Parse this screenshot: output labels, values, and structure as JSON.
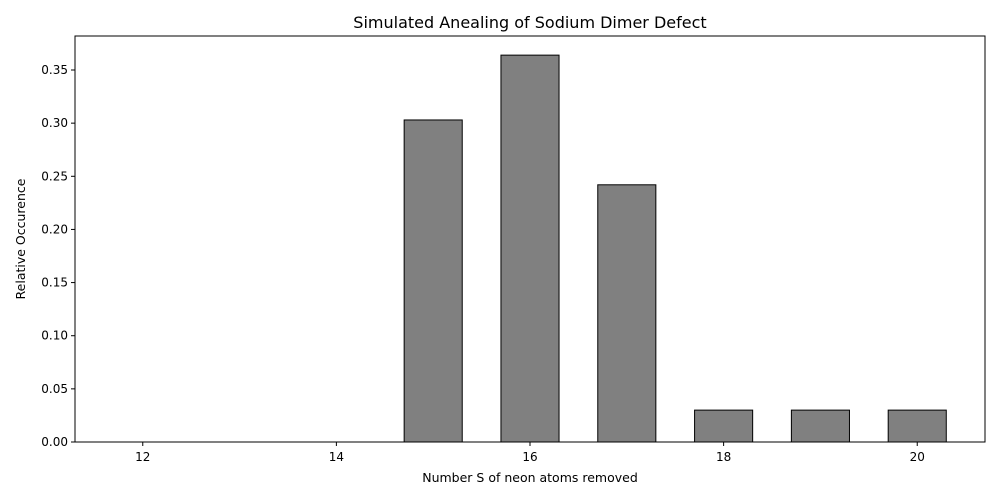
{
  "chart_data": {
    "type": "bar",
    "title": "Simulated Anealing of Sodium Dimer Defect",
    "xlabel": "Number S of neon atoms removed",
    "ylabel": "Relative Occurence",
    "x": [
      12,
      13,
      14,
      15,
      16,
      17,
      18,
      19,
      20
    ],
    "values": [
      0,
      0,
      0,
      0.303,
      0.364,
      0.242,
      0.03,
      0.03,
      0.03
    ],
    "xlim": [
      11.3,
      20.7
    ],
    "ylim": [
      0,
      0.382
    ],
    "xticks": [
      12,
      14,
      16,
      18,
      20
    ],
    "yticks": [
      0.0,
      0.05,
      0.1,
      0.15,
      0.2,
      0.25,
      0.3,
      0.35
    ],
    "bar_width": 0.6,
    "bar_color": "#808080",
    "edge_color": "#000000",
    "grid": false
  }
}
